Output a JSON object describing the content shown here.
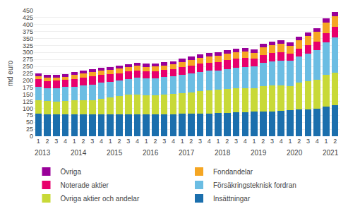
{
  "chart_data": {
    "type": "bar",
    "stacked": true,
    "ylabel": "md euro",
    "grid": true,
    "legend": "bottom",
    "ylim": [
      0,
      450
    ],
    "yticks": [
      0,
      25,
      50,
      75,
      100,
      125,
      150,
      175,
      200,
      225,
      250,
      275,
      300,
      325,
      350,
      375,
      400,
      425,
      450
    ],
    "categories": [
      "1",
      "2",
      "3",
      "4",
      "1",
      "2",
      "3",
      "4",
      "1",
      "2",
      "3",
      "4",
      "1",
      "2",
      "3",
      "4",
      "1",
      "2",
      "3",
      "4",
      "1",
      "2",
      "3",
      "4",
      "1",
      "2",
      "3",
      "4",
      "1",
      "2",
      "3",
      "4",
      "1",
      "2"
    ],
    "annotations": [
      {
        "text": "2013",
        "x": 1.5
      },
      {
        "text": "2014",
        "x": 5.5
      },
      {
        "text": "2015",
        "x": 9.5
      },
      {
        "text": "2016",
        "x": 13.5
      },
      {
        "text": "2017",
        "x": 17.5
      },
      {
        "text": "2018",
        "x": 21.5
      },
      {
        "text": "2019",
        "x": 25.5
      },
      {
        "text": "2020",
        "x": 29.5
      },
      {
        "text": "2021",
        "x": 33.5
      }
    ],
    "series": [
      {
        "name": "Insättningar",
        "color": "#1B6FAD",
        "values": [
          80,
          79,
          79,
          79,
          78,
          78,
          78,
          79,
          78,
          78,
          78,
          78,
          79,
          79,
          79,
          79,
          80,
          81,
          82,
          82,
          83,
          84,
          85,
          86,
          88,
          89,
          89,
          90,
          93,
          96,
          97,
          98,
          107,
          110
        ]
      },
      {
        "name": "Övriga aktier och andelar",
        "color": "#C8D937",
        "values": [
          50,
          47,
          46,
          47,
          50,
          50,
          52,
          55,
          62,
          65,
          70,
          72,
          68,
          68,
          70,
          72,
          74,
          76,
          80,
          82,
          83,
          85,
          87,
          87,
          84,
          90,
          93,
          93,
          87,
          95,
          100,
          105,
          113,
          118
        ]
      },
      {
        "name": "Försäkringsteknisk fordran",
        "color": "#6BBDE3",
        "values": [
          47,
          46,
          48,
          50,
          50,
          53,
          55,
          57,
          55,
          56,
          57,
          59,
          60,
          61,
          63,
          65,
          65,
          67,
          68,
          70,
          70,
          72,
          74,
          76,
          78,
          83,
          85,
          87,
          90,
          95,
          100,
          105,
          115,
          125
        ]
      },
      {
        "name": "Noterade aktier",
        "color": "#E8006C",
        "values": [
          28,
          26,
          26,
          26,
          28,
          30,
          30,
          30,
          27,
          27,
          27,
          27,
          25,
          25,
          25,
          25,
          28,
          30,
          30,
          30,
          30,
          32,
          32,
          32,
          27,
          30,
          32,
          32,
          27,
          28,
          30,
          32,
          35,
          38
        ]
      },
      {
        "name": "Fondandelar",
        "color": "#F5A623",
        "values": [
          11,
          11,
          11,
          11,
          13,
          13,
          14,
          14,
          15,
          16,
          16,
          17,
          17,
          17,
          17,
          17,
          19,
          19,
          21,
          21,
          21,
          23,
          23,
          23,
          22,
          26,
          27,
          28,
          27,
          30,
          32,
          34,
          38,
          40
        ]
      },
      {
        "name": "Övriga",
        "color": "#990099",
        "values": [
          10,
          10,
          10,
          10,
          10,
          10,
          10,
          10,
          11,
          11,
          11,
          11,
          11,
          11,
          11,
          11,
          13,
          13,
          13,
          13,
          13,
          13,
          13,
          13,
          13,
          13,
          13,
          13,
          13,
          13,
          13,
          13,
          13,
          13
        ]
      }
    ]
  }
}
